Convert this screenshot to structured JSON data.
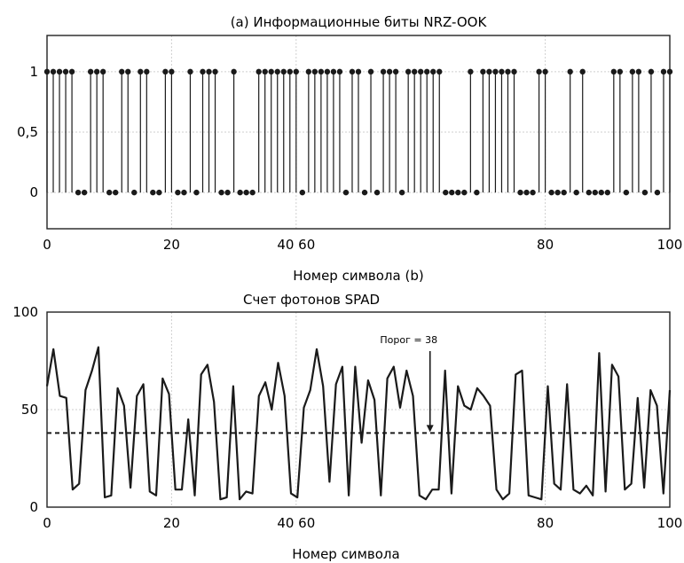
{
  "chart_data": [
    {
      "type": "stem",
      "title": "(a) Информационные биты NRZ-OOK",
      "xlabel": "Номер символа (b)",
      "ylabel": "",
      "x_tick_labels": [
        {
          "value": 0,
          "label": "0"
        },
        {
          "value": 20,
          "label": "20"
        },
        {
          "value": 40,
          "label": "40 60"
        },
        {
          "value": 80,
          "label": "80"
        },
        {
          "value": 100,
          "label": "100"
        }
      ],
      "y_tick_labels": [
        {
          "value": 0,
          "label": "0"
        },
        {
          "value": 0.5,
          "label": "0,5"
        },
        {
          "value": 1,
          "label": "1"
        }
      ],
      "xlim": [
        0,
        100
      ],
      "ylim": [
        -0.3,
        1.3
      ],
      "grid": true,
      "values": [
        1,
        1,
        1,
        1,
        1,
        0,
        0,
        1,
        1,
        1,
        0,
        0,
        1,
        1,
        0,
        1,
        1,
        0,
        0,
        1,
        1,
        0,
        0,
        1,
        0,
        1,
        1,
        1,
        0,
        0,
        1,
        0,
        0,
        0,
        1,
        1,
        1,
        1,
        1,
        1,
        1,
        0,
        1,
        1,
        1,
        1,
        1,
        1,
        0,
        1,
        1,
        0,
        1,
        0,
        1,
        1,
        1,
        0,
        1,
        1,
        1,
        1,
        1,
        1,
        0,
        0,
        0,
        0,
        1,
        0,
        1,
        1,
        1,
        1,
        1,
        1,
        0,
        0,
        0,
        1,
        1,
        0,
        0,
        0,
        1,
        0,
        1,
        0,
        0,
        0,
        0,
        1,
        1,
        0,
        1,
        1,
        0,
        1,
        0,
        1,
        1
      ]
    },
    {
      "type": "line",
      "title": "Счет фотонов SPAD",
      "xlabel": "Номер символа",
      "ylabel": "",
      "x_tick_labels": [
        {
          "value": 0,
          "label": "0"
        },
        {
          "value": 20,
          "label": "20"
        },
        {
          "value": 40,
          "label": "40 60"
        },
        {
          "value": 80,
          "label": "80"
        },
        {
          "value": 100,
          "label": "100"
        }
      ],
      "y_tick_labels": [
        {
          "value": 0,
          "label": "0"
        },
        {
          "value": 50,
          "label": "50"
        },
        {
          "value": 100,
          "label": "100"
        }
      ],
      "xlim": [
        0,
        100
      ],
      "ylim": [
        0,
        100
      ],
      "grid": true,
      "threshold": 38,
      "annotation": "Порог = 38",
      "values": [
        62,
        81,
        57,
        56,
        9,
        12,
        60,
        70,
        82,
        5,
        6,
        61,
        52,
        10,
        57,
        63,
        8,
        6,
        66,
        58,
        9,
        9,
        45,
        6,
        68,
        73,
        54,
        4,
        5,
        62,
        4,
        8,
        7,
        57,
        64,
        50,
        74,
        57,
        7,
        5,
        51,
        60,
        81,
        62,
        13,
        63,
        72,
        6,
        72,
        33,
        65,
        55,
        6,
        66,
        72,
        51,
        70,
        57,
        6,
        4,
        9,
        9,
        70,
        7,
        62,
        52,
        50,
        61,
        57,
        52,
        9,
        4,
        7,
        68,
        70,
        6,
        5,
        4,
        62,
        12,
        9,
        63,
        9,
        7,
        11,
        6,
        79,
        8,
        73,
        67,
        9,
        12,
        56,
        10,
        60,
        52,
        7,
        60
      ]
    }
  ]
}
